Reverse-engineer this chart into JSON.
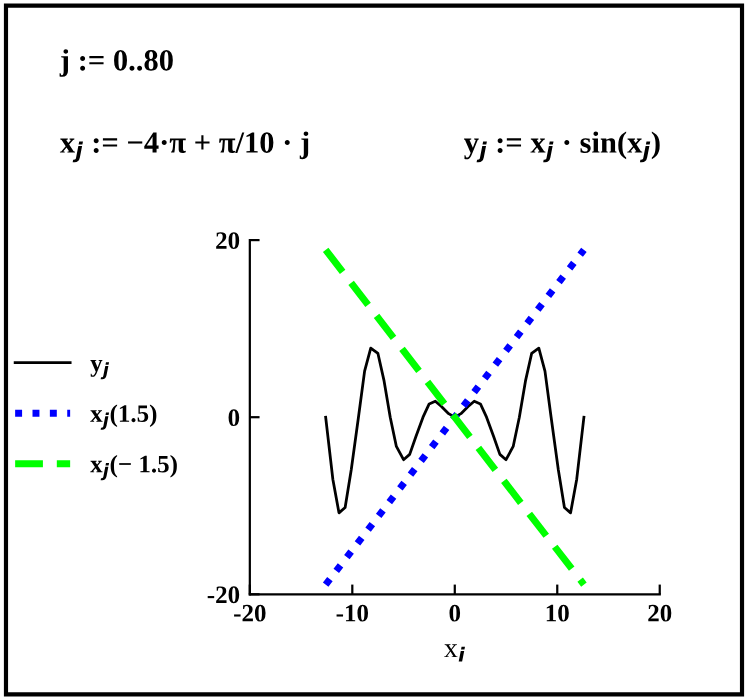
{
  "chart_data": {
    "type": "line",
    "annotations": [
      "j := 0..80",
      "x$_{j}$ := −4·π + π/10 · j",
      "y$_{j}$ := x$_{j}$ · sin(x$_{j}$)"
    ],
    "xlabel": "x$_{i}$",
    "series": [
      {
        "name": "y$_{j}$",
        "color": "#000000",
        "line_style": "solid",
        "x": [
          -12.6,
          -11.9,
          -11.3,
          -10.7,
          -10.1,
          -9.4,
          -8.8,
          -8.2,
          -7.5,
          -6.9,
          -6.3,
          -5.7,
          -5.0,
          -4.4,
          -3.8,
          -3.1,
          -2.5,
          -1.9,
          -1.3,
          -0.6,
          0,
          0.6,
          1.3,
          1.9,
          2.5,
          3.1,
          3.8,
          4.4,
          5.0,
          5.7,
          6.3,
          6.9,
          7.5,
          8.2,
          8.8,
          9.4,
          10.1,
          10.7,
          11.3,
          11.9,
          12.6
        ],
        "values": [
          0,
          -7.0,
          -10.8,
          -10.2,
          -5.9,
          0,
          5.2,
          7.8,
          7.2,
          4.1,
          0,
          -3.3,
          -4.8,
          -4.2,
          -2.2,
          0,
          1.5,
          1.8,
          1.2,
          0.4,
          0,
          0.4,
          1.2,
          1.8,
          1.5,
          0,
          -2.2,
          -4.2,
          -4.8,
          -3.3,
          0,
          4.1,
          7.2,
          7.8,
          5.2,
          0,
          -5.9,
          -10.2,
          -10.8,
          -7.0,
          0
        ]
      },
      {
        "name": "x$_{j}$(1.5)",
        "color": "#0000ff",
        "line_style": "dotted",
        "x": [
          -12.6,
          12.6
        ],
        "values": [
          -18.9,
          18.9
        ]
      },
      {
        "name": "x$_{j}$(− 1.5)",
        "color": "#00ff00",
        "line_style": "dashed",
        "x": [
          -12.6,
          12.6
        ],
        "values": [
          18.9,
          -18.9
        ]
      }
    ],
    "xlim": [
      -20,
      20
    ],
    "xticks": [
      -20,
      -10,
      0,
      10,
      20
    ],
    "ylim": [
      -20,
      20
    ],
    "yticks": [
      -20,
      0,
      20
    ],
    "grid": false,
    "legend": "left"
  }
}
